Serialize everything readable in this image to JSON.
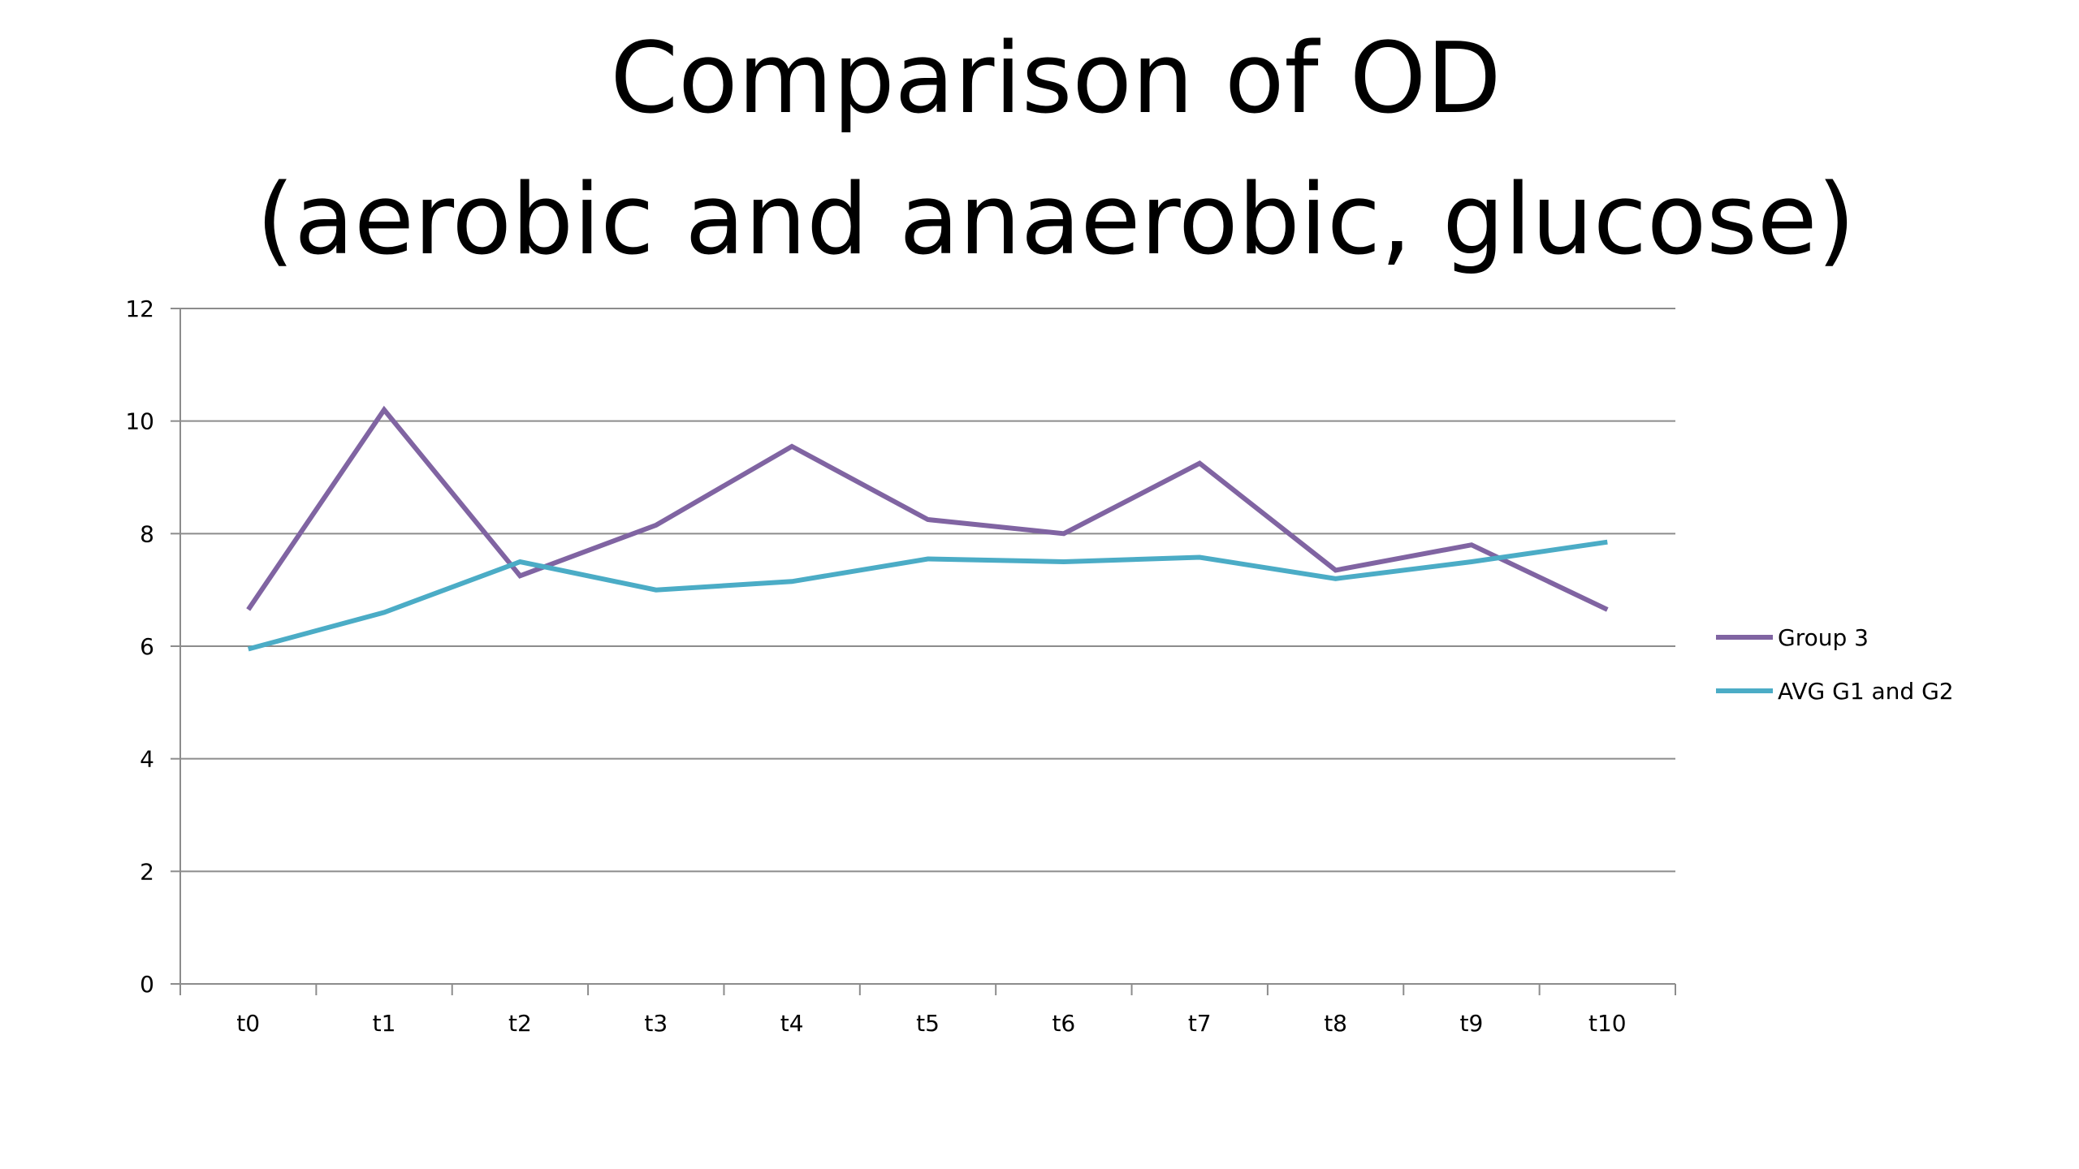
{
  "chart_data": {
    "type": "line",
    "title_lines": [
      "Comparison of OD",
      "(aerobic and anaerobic, glucose)"
    ],
    "xlabel": "",
    "ylabel": "",
    "categories": [
      "t0",
      "t1",
      "t2",
      "t3",
      "t4",
      "t5",
      "t6",
      "t7",
      "t8",
      "t9",
      "t10"
    ],
    "ylim": [
      0,
      12
    ],
    "yticks": [
      0,
      2,
      4,
      6,
      8,
      10,
      12
    ],
    "ytick_labels": [
      "0",
      "2",
      "4",
      "6",
      "8",
      "10",
      "12"
    ],
    "grid": "horizontal",
    "legend_position": "right",
    "series": [
      {
        "name": "Group 3",
        "color": "#8064a2",
        "values": [
          6.65,
          10.2,
          7.25,
          8.15,
          9.55,
          8.25,
          8.0,
          9.25,
          7.35,
          7.8,
          6.65
        ]
      },
      {
        "name": "AVG G1 and G2",
        "color": "#4bacc6",
        "values": [
          5.95,
          6.6,
          7.5,
          7.0,
          7.15,
          7.55,
          7.5,
          7.58,
          7.2,
          7.5,
          7.85
        ]
      }
    ]
  }
}
